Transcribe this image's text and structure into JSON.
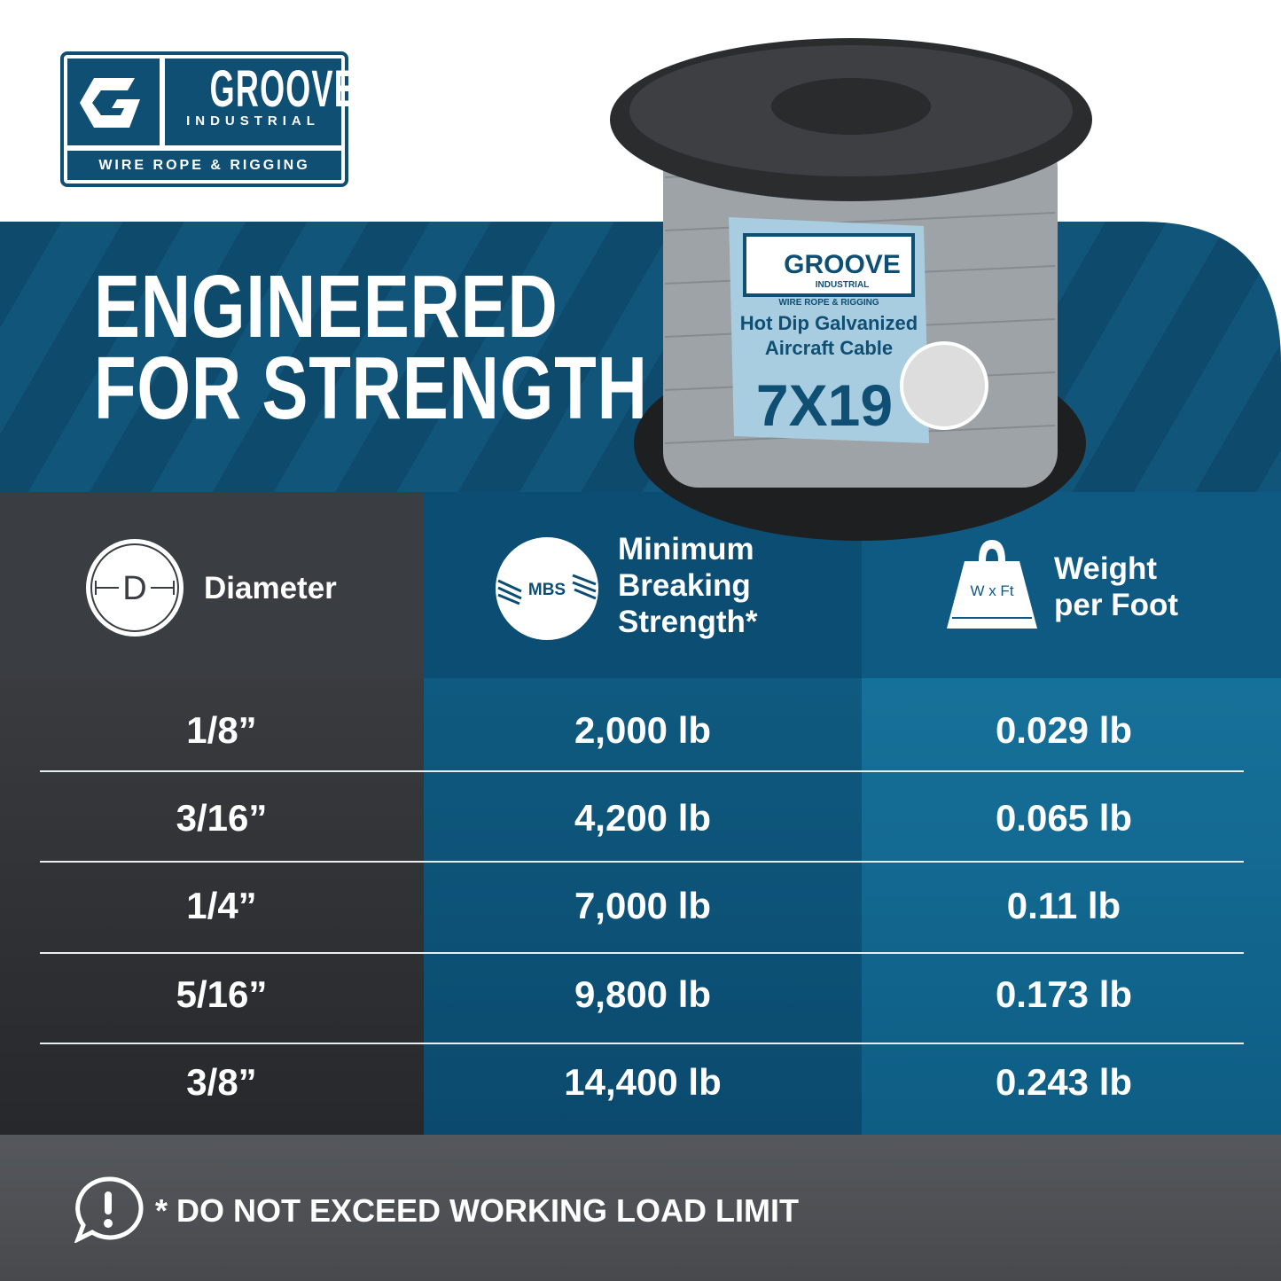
{
  "brand": {
    "name": "GROOVE",
    "sub": "INDUSTRIAL",
    "tagline": "WIRE ROPE & RIGGING",
    "color": "#0f4f73"
  },
  "headline": {
    "line1": "ENGINEERED",
    "line2": "FOR STRENGTH"
  },
  "product_label": {
    "brand": "GROOVE",
    "sub": "INDUSTRIAL",
    "tagline": "WIRE ROPE & RIGGING",
    "line1": "Hot Dip Galvanized",
    "line2": "Aircraft Cable",
    "construction": "7X19"
  },
  "table": {
    "headers": [
      {
        "icon": "diameter-icon",
        "icon_text": "D",
        "label": "Diameter"
      },
      {
        "icon": "mbs-rope-icon",
        "icon_text": "MBS",
        "label_lines": [
          "Minimum",
          "Breaking",
          "Strength*"
        ]
      },
      {
        "icon": "weight-icon",
        "icon_text": "W x Ft",
        "label_lines": [
          "Weight",
          "per Foot"
        ]
      }
    ],
    "rows": [
      [
        "1/8”",
        "2,000 lb",
        "0.029 lb"
      ],
      [
        "3/16”",
        "4,200 lb",
        "0.065 lb"
      ],
      [
        "1/4”",
        "7,000 lb",
        "0.11 lb"
      ],
      [
        "5/16”",
        "9,800 lb",
        "0.173 lb"
      ],
      [
        "3/8”",
        "14,400 lb",
        "0.243 lb"
      ]
    ]
  },
  "footer": {
    "icon": "alert-speech-icon",
    "warning": "* DO NOT EXCEED WORKING LOAD LIMIT"
  }
}
